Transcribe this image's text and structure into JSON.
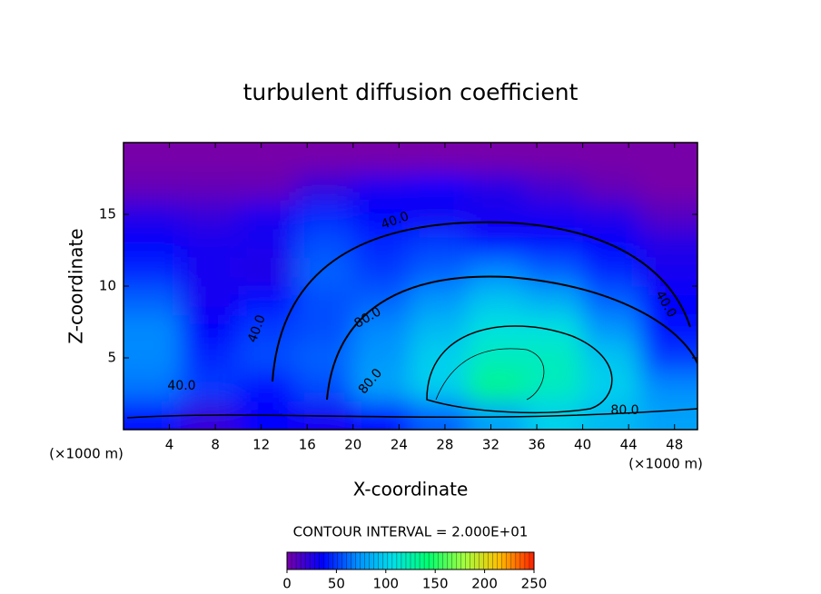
{
  "chart_data": {
    "type": "contour",
    "title": "turbulent diffusion coefficient",
    "xlabel": "X-coordinate",
    "ylabel": "Z-coordinate",
    "x_unit_label": "(×1000 m)",
    "y_unit_label": "(×1000 m)",
    "xlim": [
      0,
      50
    ],
    "ylim": [
      0,
      20
    ],
    "xticks": [
      4,
      8,
      12,
      16,
      20,
      24,
      28,
      32,
      36,
      40,
      44,
      48
    ],
    "yticks": [
      5,
      10,
      15
    ],
    "x": [
      2.5,
      7.5,
      12.5,
      17.5,
      22.5,
      27.5,
      32.5,
      37.5,
      42.5,
      47.5
    ],
    "y": [
      1,
      3,
      5,
      7,
      9,
      11,
      13,
      15,
      17,
      19
    ],
    "z": [
      [
        40,
        20,
        35,
        30,
        40,
        60,
        80,
        100,
        90,
        80
      ],
      [
        65,
        50,
        40,
        55,
        80,
        100,
        135,
        120,
        100,
        70
      ],
      [
        70,
        45,
        55,
        60,
        75,
        100,
        120,
        120,
        95,
        50
      ],
      [
        70,
        35,
        50,
        55,
        70,
        90,
        110,
        110,
        75,
        40
      ],
      [
        60,
        30,
        40,
        55,
        60,
        75,
        95,
        85,
        60,
        35
      ],
      [
        45,
        30,
        25,
        60,
        50,
        60,
        70,
        60,
        45,
        30
      ],
      [
        35,
        30,
        30,
        55,
        45,
        50,
        40,
        40,
        35,
        25
      ],
      [
        25,
        20,
        30,
        45,
        35,
        30,
        30,
        30,
        25,
        10
      ],
      [
        5,
        5,
        5,
        20,
        30,
        35,
        25,
        15,
        5,
        0
      ],
      [
        0,
        0,
        0,
        0,
        0,
        0,
        0,
        0,
        0,
        0
      ]
    ],
    "contour_labels": [
      "40.0",
      "40.0",
      "40.0",
      "40.0",
      "80.0",
      "80.0",
      "80.0"
    ],
    "contour_interval_text": "CONTOUR INTERVAL = 2.000E+01",
    "clim": [
      0,
      250
    ],
    "colorbar_ticks": [
      0,
      50,
      100,
      150,
      200,
      250
    ],
    "colors": [
      "#7800a8",
      "#0000ff",
      "#0090ff",
      "#00e0e8",
      "#00ff70",
      "#a0ff40",
      "#ffc000",
      "#ff2000"
    ]
  }
}
